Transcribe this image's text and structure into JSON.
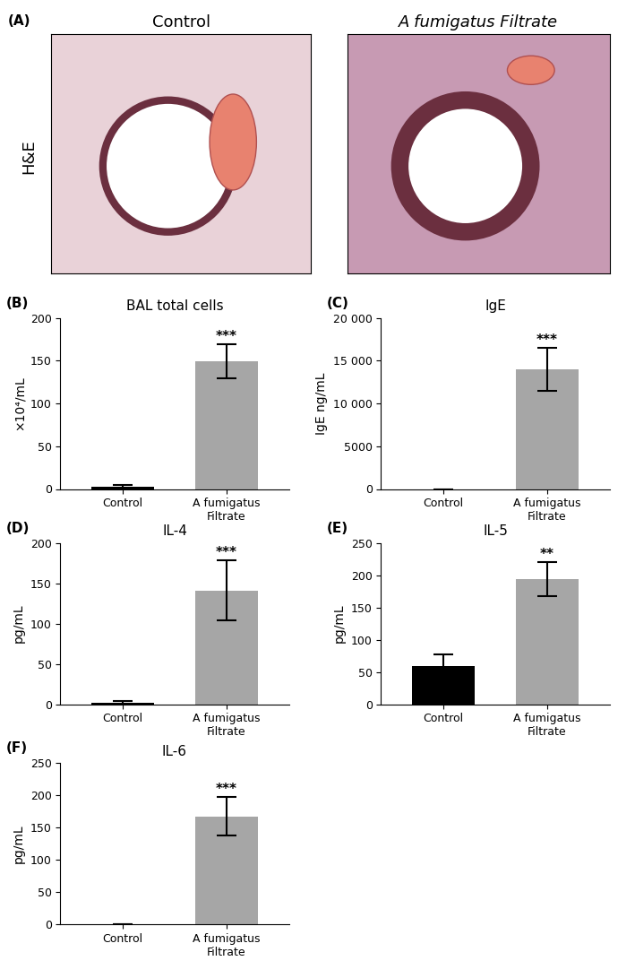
{
  "images": {
    "label": "(A)",
    "row_label": "H&E",
    "titles": [
      "Control",
      "A fumigatus Filtrate"
    ]
  },
  "chart_data": [
    {
      "type": "bar",
      "label": "(B)",
      "title": "BAL total cells",
      "ylabel": "×10⁴/mL",
      "categories": [
        "Control",
        "A fumigatus\nFiltrate"
      ],
      "values": [
        3,
        149
      ],
      "errors": [
        2,
        20
      ],
      "colors": [
        "#000000",
        "#a6a6a6"
      ],
      "ylim": [
        0,
        200
      ],
      "yticks": [
        0,
        50,
        100,
        150,
        200
      ],
      "annotations": [
        {
          "x": "A fumigatus\nFiltrate",
          "text": "***"
        }
      ]
    },
    {
      "type": "bar",
      "label": "(C)",
      "title": "IgE",
      "ylabel": "IgE ng/mL",
      "categories": [
        "Control",
        "A fumigatus\nFiltrate"
      ],
      "values": [
        0,
        14000
      ],
      "errors": [
        0,
        2500
      ],
      "colors": [
        "#000000",
        "#a6a6a6"
      ],
      "ylim": [
        0,
        20000
      ],
      "yticks": [
        0,
        5000,
        {
          "value": 10000,
          "label": "10 000"
        },
        {
          "value": 15000,
          "label": "15 000"
        },
        {
          "value": 20000,
          "label": "20 000"
        }
      ],
      "annotations": [
        {
          "x": "A fumigatus\nFiltrate",
          "text": "***"
        }
      ]
    },
    {
      "type": "bar",
      "label": "(D)",
      "title": "IL-4",
      "ylabel": "pg/mL",
      "categories": [
        "Control",
        "A fumigatus\nFiltrate"
      ],
      "values": [
        2,
        141
      ],
      "errors": [
        1.5,
        37
      ],
      "colors": [
        "#000000",
        "#a6a6a6"
      ],
      "ylim": [
        0,
        200
      ],
      "yticks": [
        0,
        50,
        100,
        150,
        200
      ],
      "annotations": [
        {
          "x": "A fumigatus\nFiltrate",
          "text": "***"
        }
      ]
    },
    {
      "type": "bar",
      "label": "(E)",
      "title": "IL-5",
      "ylabel": "pg/mL",
      "categories": [
        "Control",
        "A fumigatus\nFiltrate"
      ],
      "values": [
        59,
        194
      ],
      "errors": [
        18,
        26
      ],
      "colors": [
        "#000000",
        "#a6a6a6"
      ],
      "ylim": [
        0,
        250
      ],
      "yticks": [
        0,
        50,
        100,
        150,
        200,
        250
      ],
      "annotations": [
        {
          "x": "A fumigatus\nFiltrate",
          "text": "**"
        }
      ]
    },
    {
      "type": "bar",
      "label": "(F)",
      "title": "IL-6",
      "ylabel": "pg/mL",
      "categories": [
        "Control",
        "A fumigatus\nFiltrate"
      ],
      "values": [
        0,
        167
      ],
      "errors": [
        0,
        30
      ],
      "colors": [
        "#000000",
        "#a6a6a6"
      ],
      "ylim": [
        0,
        250
      ],
      "yticks": [
        0,
        50,
        100,
        150,
        200,
        250
      ],
      "annotations": [
        {
          "x": "A fumigatus\nFiltrate",
          "text": "***"
        }
      ]
    }
  ]
}
